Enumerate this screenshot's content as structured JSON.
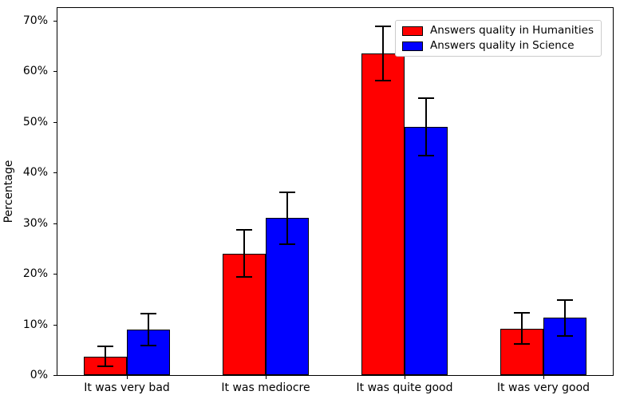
{
  "chart_data": {
    "type": "bar",
    "title": "",
    "xlabel": "",
    "ylabel": "Percentage",
    "categories": [
      "It was very bad",
      "It was mediocre",
      "It was quite good",
      "It was very good"
    ],
    "series": [
      {
        "name": "Answers quality in Humanities",
        "color": "#ff0000",
        "values": [
          3.7,
          24.0,
          63.5,
          9.2
        ],
        "errors": [
          2.2,
          4.8,
          5.5,
          3.2
        ]
      },
      {
        "name": "Answers quality in Science",
        "color": "#0000ff",
        "values": [
          9.0,
          31.0,
          49.0,
          11.3
        ],
        "errors": [
          3.3,
          5.3,
          5.8,
          3.7
        ]
      }
    ],
    "ylim": [
      0,
      72.5
    ],
    "yticks": [
      0,
      10,
      20,
      30,
      40,
      50,
      60,
      70
    ],
    "ytick_labels": [
      "0%",
      "10%",
      "20%",
      "30%",
      "40%",
      "50%",
      "60%",
      "70%"
    ],
    "grid": false,
    "legend_position": "upper right",
    "error_bars": true,
    "bar_edge_color": "#000000",
    "error_bar_color": "#000000"
  }
}
